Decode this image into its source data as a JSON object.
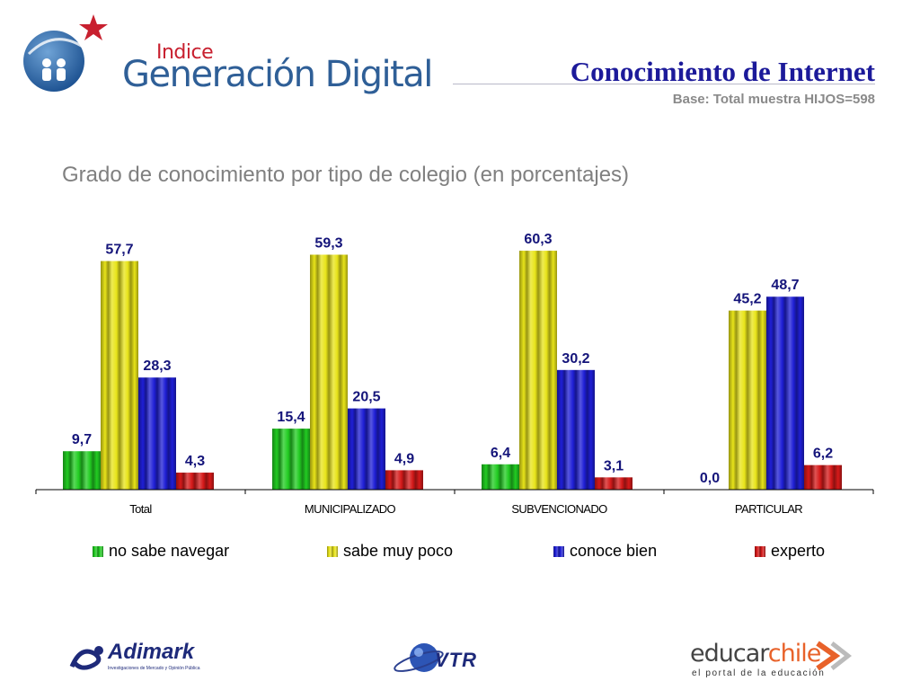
{
  "header": {
    "logo_small": "Indice",
    "logo_big": "Generación Digital",
    "title": "Conocimiento de Internet",
    "subtitle": "Base: Total muestra HIJOS=598"
  },
  "chart_data": {
    "type": "bar",
    "title": "Grado de conocimiento por tipo de colegio (en porcentajes)",
    "categories": [
      "Total",
      "MUNICIPALIZADO",
      "SUBVENCIONADO",
      "PARTICULAR"
    ],
    "series": [
      {
        "name": "no sabe navegar",
        "color": "#22cc22",
        "values": [
          9.7,
          15.4,
          6.4,
          0.0
        ],
        "labels": [
          "9,7",
          "15,4",
          "6,4",
          "0,0"
        ]
      },
      {
        "name": "sabe muy poco",
        "color": "#e8e41a",
        "values": [
          57.7,
          59.3,
          60.3,
          45.2
        ],
        "labels": [
          "57,7",
          "59,3",
          "60,3",
          "45,2"
        ]
      },
      {
        "name": "conoce bien",
        "color": "#1f1fd6",
        "values": [
          28.3,
          20.5,
          30.2,
          48.7
        ],
        "labels": [
          "28,3",
          "20,5",
          "30,2",
          "48,7"
        ]
      },
      {
        "name": "experto",
        "color": "#d61a1a",
        "values": [
          4.3,
          4.9,
          3.1,
          6.2
        ],
        "labels": [
          "4,3",
          "4,9",
          "3,1",
          "6,2"
        ]
      }
    ],
    "label_color": "#14147a",
    "grid": false,
    "legend_position": "bottom"
  },
  "footer": {
    "adimark_name": "Adimark",
    "adimark_tag": "Investigaciones de Mercado y Opinión Pública",
    "vtr_name": "VTR",
    "educar_a": "educar",
    "educar_b": "chile",
    "educar_tag": "el portal de la educación"
  }
}
